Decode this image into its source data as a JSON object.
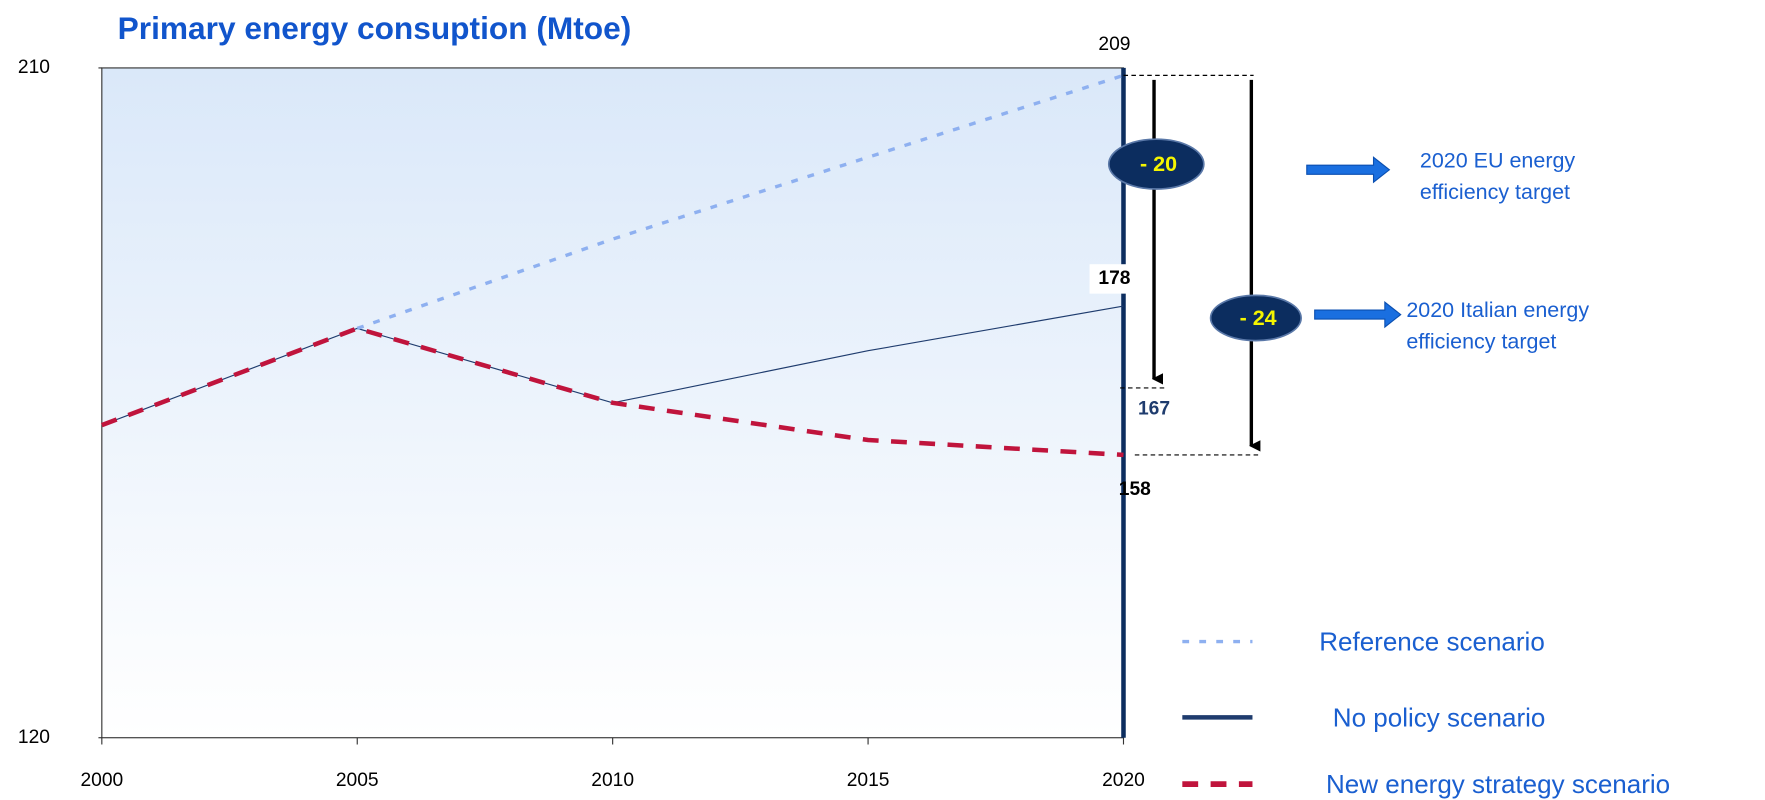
{
  "chart_data": {
    "type": "line",
    "title": "Primary energy consuption (Mtoe)",
    "x": [
      2000,
      2005,
      2010,
      2015,
      2020
    ],
    "xlim": [
      2000,
      2020
    ],
    "xticks": [
      2000,
      2005,
      2010,
      2015,
      2020
    ],
    "ylim": [
      120,
      210
    ],
    "yticks": [
      120,
      210
    ],
    "series": [
      {
        "name": "Reference scenario",
        "color": "#8eb0f0",
        "values": [
          null,
          175,
          187,
          198,
          209
        ],
        "value_labels": [
          null,
          null,
          null,
          null,
          "209"
        ]
      },
      {
        "name": "No policy scenario",
        "color": "#1f3c6e",
        "values": [
          162,
          175,
          165,
          172,
          178
        ],
        "value_labels": [
          null,
          null,
          null,
          null,
          "178"
        ]
      },
      {
        "name": "New energy strategy scenario",
        "color": "#c0143c",
        "values": [
          162,
          175,
          165,
          160,
          158
        ],
        "value_labels": [
          null,
          null,
          null,
          null,
          "158"
        ]
      }
    ],
    "targets": [
      {
        "label": "- 20",
        "from": 209,
        "to": 167,
        "to_label": "167",
        "text": [
          "2020 EU energy",
          "efficiency target"
        ]
      },
      {
        "label": "- 24",
        "from": 209,
        "to": 158,
        "text": [
          "2020 Italian energy",
          "efficiency target"
        ]
      }
    ]
  }
}
